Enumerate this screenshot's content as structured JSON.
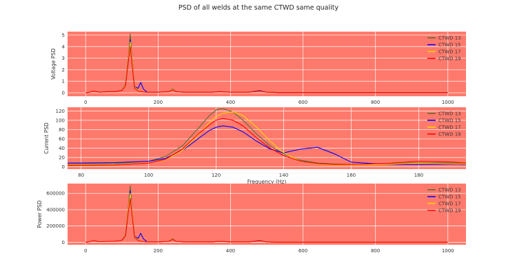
{
  "figure": {
    "title": "PSD of all welds at the same CTWD same quality"
  },
  "colors": {
    "plot_bg": "#ff7a6c",
    "grid": "#ffffff",
    "CTWD 13": "#556b2f",
    "CTWD 15": "#0000ff",
    "CTWD 17": "#ffd200",
    "CTWD 19": "#ff0000"
  },
  "chart_data": [
    {
      "type": "line",
      "ylabel": "Voltage PSD",
      "xlabel": "",
      "xlim": [
        -50,
        1050
      ],
      "ylim": [
        -0.3,
        5.3
      ],
      "xticks": [
        0,
        200,
        400,
        600,
        800,
        1000
      ],
      "yticks": [
        0,
        1,
        2,
        3,
        4,
        5
      ],
      "grid": true,
      "legend": "top-right",
      "series": [
        {
          "name": "CTWD 13",
          "x": [
            0,
            10,
            20,
            40,
            60,
            80,
            100,
            110,
            118,
            123,
            128,
            135,
            145,
            155,
            165,
            200,
            230,
            240,
            250,
            270,
            300,
            350,
            370,
            400,
            450,
            480,
            500,
            530,
            600,
            1000
          ],
          "y": [
            0,
            0.05,
            0.15,
            0.05,
            0.1,
            0.1,
            0.2,
            0.8,
            3.2,
            5.1,
            3.0,
            0.6,
            0.2,
            0.1,
            0.05,
            0.05,
            0.1,
            0.35,
            0.1,
            0.05,
            0.05,
            0.05,
            0.1,
            0.05,
            0.05,
            0.2,
            0.05,
            0.02,
            0.02,
            0.02
          ]
        },
        {
          "name": "CTWD 15",
          "x": [
            0,
            10,
            20,
            40,
            60,
            80,
            100,
            110,
            118,
            123,
            128,
            135,
            145,
            152,
            160,
            170,
            200,
            230,
            240,
            250,
            270,
            300,
            350,
            370,
            400,
            450,
            480,
            500,
            530,
            600,
            1000
          ],
          "y": [
            0,
            0.05,
            0.15,
            0.05,
            0.1,
            0.1,
            0.2,
            0.7,
            2.8,
            4.6,
            2.6,
            0.5,
            0.4,
            0.9,
            0.3,
            0.05,
            0.05,
            0.1,
            0.3,
            0.1,
            0.05,
            0.05,
            0.05,
            0.1,
            0.05,
            0.05,
            0.18,
            0.05,
            0.02,
            0.02,
            0.02
          ]
        },
        {
          "name": "CTWD 17",
          "x": [
            0,
            10,
            20,
            40,
            60,
            80,
            100,
            110,
            118,
            123,
            128,
            135,
            145,
            155,
            165,
            200,
            230,
            240,
            250,
            270,
            300,
            350,
            370,
            400,
            450,
            480,
            500,
            530,
            600,
            1000
          ],
          "y": [
            0,
            0.05,
            0.15,
            0.05,
            0.1,
            0.1,
            0.2,
            0.7,
            3.0,
            4.4,
            2.8,
            0.5,
            0.2,
            0.1,
            0.05,
            0.05,
            0.1,
            0.3,
            0.1,
            0.05,
            0.05,
            0.05,
            0.1,
            0.05,
            0.05,
            0.15,
            0.05,
            0.02,
            0.02,
            0.02
          ]
        },
        {
          "name": "CTWD 19",
          "x": [
            0,
            10,
            20,
            40,
            60,
            80,
            100,
            110,
            118,
            123,
            128,
            135,
            145,
            155,
            165,
            200,
            230,
            240,
            250,
            270,
            300,
            350,
            370,
            400,
            450,
            480,
            500,
            530,
            600,
            1000
          ],
          "y": [
            0,
            0.05,
            0.15,
            0.05,
            0.1,
            0.1,
            0.2,
            0.6,
            2.8,
            4.0,
            2.5,
            0.4,
            0.15,
            0.1,
            0.05,
            0.05,
            0.1,
            0.25,
            0.1,
            0.05,
            0.05,
            0.05,
            0.1,
            0.05,
            0.05,
            0.15,
            0.05,
            0.02,
            0.02,
            0.02
          ]
        }
      ]
    },
    {
      "type": "line",
      "ylabel": "Current PSD",
      "xlabel": "Frequency (Hz)",
      "xlim": [
        76,
        194
      ],
      "ylim": [
        -5,
        128
      ],
      "xticks": [
        80,
        100,
        120,
        140,
        160,
        180
      ],
      "yticks": [
        0,
        20,
        40,
        60,
        80,
        100,
        120
      ],
      "grid": true,
      "legend": "top-right",
      "series": [
        {
          "name": "CTWD 13",
          "x": [
            76,
            90,
            100,
            105,
            110,
            115,
            118,
            120,
            122,
            125,
            128,
            132,
            136,
            140,
            145,
            150,
            155,
            160,
            170,
            180,
            190,
            194
          ],
          "y": [
            5,
            7,
            12,
            22,
            45,
            85,
            110,
            122,
            125,
            118,
            100,
            70,
            45,
            28,
            14,
            8,
            6,
            5,
            6,
            9,
            8,
            7
          ]
        },
        {
          "name": "CTWD 15",
          "x": [
            76,
            90,
            100,
            105,
            110,
            115,
            118,
            120,
            122,
            125,
            128,
            132,
            136,
            140,
            145,
            150,
            155,
            160,
            170,
            180,
            190,
            194
          ],
          "y": [
            8,
            9,
            12,
            18,
            35,
            62,
            78,
            85,
            88,
            85,
            75,
            55,
            38,
            30,
            38,
            42,
            28,
            10,
            5,
            5,
            6,
            5
          ]
        },
        {
          "name": "CTWD 17",
          "x": [
            76,
            90,
            100,
            105,
            110,
            115,
            118,
            120,
            122,
            125,
            128,
            132,
            136,
            140,
            145,
            150,
            155,
            160,
            170,
            180,
            190,
            194
          ],
          "y": [
            4,
            5,
            8,
            15,
            35,
            70,
            95,
            108,
            115,
            118,
            110,
            85,
            55,
            30,
            12,
            6,
            4,
            4,
            5,
            8,
            7,
            6
          ]
        },
        {
          "name": "CTWD 19",
          "x": [
            76,
            90,
            100,
            105,
            110,
            115,
            118,
            120,
            122,
            125,
            128,
            132,
            136,
            140,
            145,
            150,
            155,
            160,
            170,
            180,
            190,
            194
          ],
          "y": [
            3,
            4,
            8,
            16,
            38,
            72,
            90,
            100,
            104,
            100,
            88,
            62,
            40,
            24,
            12,
            7,
            5,
            5,
            7,
            12,
            10,
            8
          ]
        }
      ]
    },
    {
      "type": "line",
      "ylabel": "Power PSD",
      "xlabel": "",
      "xlim": [
        -50,
        1050
      ],
      "ylim": [
        -30000,
        720000
      ],
      "xticks": [
        0,
        200,
        400,
        600,
        800,
        1000
      ],
      "yticks": [
        0,
        200000,
        400000,
        600000
      ],
      "grid": true,
      "legend": "top-right",
      "series": [
        {
          "name": "CTWD 13",
          "x": [
            0,
            10,
            20,
            40,
            60,
            80,
            100,
            110,
            118,
            123,
            128,
            135,
            145,
            155,
            165,
            200,
            230,
            240,
            250,
            270,
            300,
            350,
            370,
            400,
            450,
            480,
            500,
            530,
            600,
            1000
          ],
          "y": [
            0,
            8000,
            20000,
            8000,
            12000,
            12000,
            25000,
            100000,
            450000,
            690000,
            400000,
            80000,
            25000,
            12000,
            6000,
            5000,
            12000,
            45000,
            12000,
            6000,
            5000,
            5000,
            12000,
            5000,
            5000,
            22000,
            5000,
            2000,
            2000,
            2000
          ]
        },
        {
          "name": "CTWD 15",
          "x": [
            0,
            10,
            20,
            40,
            60,
            80,
            100,
            110,
            118,
            123,
            128,
            135,
            145,
            152,
            160,
            170,
            200,
            230,
            240,
            250,
            270,
            300,
            350,
            370,
            400,
            450,
            480,
            500,
            530,
            600,
            1000
          ],
          "y": [
            0,
            8000,
            20000,
            8000,
            12000,
            12000,
            25000,
            90000,
            400000,
            630000,
            370000,
            70000,
            50000,
            110000,
            40000,
            6000,
            5000,
            12000,
            40000,
            12000,
            6000,
            5000,
            5000,
            12000,
            5000,
            5000,
            20000,
            5000,
            2000,
            2000,
            2000
          ]
        },
        {
          "name": "CTWD 17",
          "x": [
            0,
            10,
            20,
            40,
            60,
            80,
            100,
            110,
            118,
            123,
            128,
            135,
            145,
            155,
            165,
            200,
            230,
            240,
            250,
            270,
            300,
            350,
            370,
            400,
            450,
            480,
            500,
            530,
            600,
            1000
          ],
          "y": [
            0,
            8000,
            20000,
            8000,
            12000,
            12000,
            25000,
            90000,
            420000,
            600000,
            380000,
            70000,
            25000,
            12000,
            6000,
            5000,
            12000,
            40000,
            12000,
            6000,
            5000,
            5000,
            12000,
            5000,
            5000,
            18000,
            5000,
            2000,
            2000,
            2000
          ]
        },
        {
          "name": "CTWD 19",
          "x": [
            0,
            10,
            20,
            40,
            60,
            80,
            100,
            110,
            118,
            123,
            128,
            135,
            145,
            155,
            165,
            200,
            230,
            240,
            250,
            270,
            300,
            350,
            370,
            400,
            450,
            480,
            500,
            530,
            600,
            1000
          ],
          "y": [
            0,
            8000,
            20000,
            8000,
            12000,
            12000,
            25000,
            80000,
            380000,
            540000,
            340000,
            60000,
            20000,
            12000,
            6000,
            5000,
            12000,
            35000,
            12000,
            6000,
            5000,
            5000,
            12000,
            5000,
            5000,
            18000,
            5000,
            2000,
            2000,
            2000
          ]
        }
      ]
    }
  ]
}
